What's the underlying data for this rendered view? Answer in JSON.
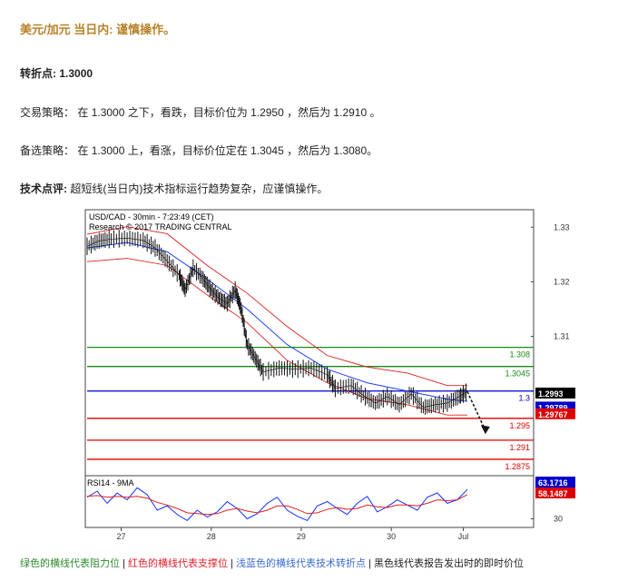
{
  "header": {
    "title": "美元/加元 当日内: 谨慎操作。"
  },
  "pivot": {
    "label": "转折点:",
    "value": "1.3000"
  },
  "strategy": {
    "label": "交易策略：",
    "text": "在 1.3000 之下，看跌，目标价位为 1.2950 ，然后为 1.2910 。"
  },
  "alternative": {
    "label": "备选策略：",
    "text": "在 1.3000 上，看涨，目标价位定在 1.3045 ，然后为 1.3080。"
  },
  "comment": {
    "label": "技术点评:",
    "text": "超短线(当日内)技术指标运行趋势复杂，应谨慎操作。"
  },
  "chart_data": {
    "type": "line",
    "header_line1": "USD/CAD - 30min - 7:23:49 (CET)",
    "header_line2": "Research © 2017 TRADING CENTRAL",
    "y_ticks": [
      "1.33",
      "1.32",
      "1.31",
      "1.3"
    ],
    "x_ticks": [
      "27",
      "28",
      "29",
      "30",
      "Jul"
    ],
    "price_axis": {
      "min": 1.2845,
      "max": 1.3332
    },
    "levels": [
      {
        "label": "1.308",
        "value": 1.308,
        "kind": "resistance",
        "color": "#1a8a1a"
      },
      {
        "label": "1.3045",
        "value": 1.3045,
        "kind": "resistance",
        "color": "#1a8a1a"
      },
      {
        "label": "1.3",
        "value": 1.3,
        "kind": "pivot",
        "color": "#0000cc"
      },
      {
        "label": "1.295",
        "value": 1.295,
        "kind": "support",
        "color": "#dd0000"
      },
      {
        "label": "1.291",
        "value": 1.291,
        "kind": "support",
        "color": "#dd0000"
      },
      {
        "label": "1.2875",
        "value": 1.2875,
        "kind": "support",
        "color": "#dd0000"
      }
    ],
    "price_tags": [
      {
        "label": "1.2993",
        "value": 1.2993,
        "bg": "#000000"
      },
      {
        "label": "1.29789",
        "value": 1.29789,
        "bg": "#0000cc"
      },
      {
        "label": "1.29767",
        "value": 1.29767,
        "bg": "#dd0000"
      }
    ],
    "price_series": [
      {
        "x": 0.0,
        "y": 1.3265
      },
      {
        "x": 0.03,
        "y": 1.3275
      },
      {
        "x": 0.06,
        "y": 1.3278
      },
      {
        "x": 0.1,
        "y": 1.328
      },
      {
        "x": 0.14,
        "y": 1.3276
      },
      {
        "x": 0.17,
        "y": 1.3262
      },
      {
        "x": 0.2,
        "y": 1.3238
      },
      {
        "x": 0.23,
        "y": 1.3212
      },
      {
        "x": 0.245,
        "y": 1.3185
      },
      {
        "x": 0.265,
        "y": 1.3225
      },
      {
        "x": 0.29,
        "y": 1.3205
      },
      {
        "x": 0.31,
        "y": 1.3185
      },
      {
        "x": 0.33,
        "y": 1.317
      },
      {
        "x": 0.35,
        "y": 1.316
      },
      {
        "x": 0.37,
        "y": 1.3185
      },
      {
        "x": 0.385,
        "y": 1.315
      },
      {
        "x": 0.4,
        "y": 1.3085
      },
      {
        "x": 0.42,
        "y": 1.306
      },
      {
        "x": 0.44,
        "y": 1.3035
      },
      {
        "x": 0.48,
        "y": 1.3042
      },
      {
        "x": 0.52,
        "y": 1.304
      },
      {
        "x": 0.56,
        "y": 1.3042
      },
      {
        "x": 0.6,
        "y": 1.303
      },
      {
        "x": 0.62,
        "y": 1.3005
      },
      {
        "x": 0.66,
        "y": 1.301
      },
      {
        "x": 0.69,
        "y": 1.2992
      },
      {
        "x": 0.72,
        "y": 1.2978
      },
      {
        "x": 0.75,
        "y": 1.299
      },
      {
        "x": 0.78,
        "y": 1.2975
      },
      {
        "x": 0.81,
        "y": 1.2995
      },
      {
        "x": 0.84,
        "y": 1.297
      },
      {
        "x": 0.87,
        "y": 1.2975
      },
      {
        "x": 0.9,
        "y": 1.2978
      },
      {
        "x": 0.93,
        "y": 1.299
      },
      {
        "x": 0.95,
        "y": 1.2999
      }
    ],
    "ma_series": [
      {
        "x": 0.0,
        "y": 1.3262
      },
      {
        "x": 0.1,
        "y": 1.3272
      },
      {
        "x": 0.2,
        "y": 1.3255
      },
      {
        "x": 0.3,
        "y": 1.3205
      },
      {
        "x": 0.4,
        "y": 1.315
      },
      {
        "x": 0.5,
        "y": 1.3085
      },
      {
        "x": 0.6,
        "y": 1.304
      },
      {
        "x": 0.7,
        "y": 1.3015
      },
      {
        "x": 0.8,
        "y": 1.3
      },
      {
        "x": 0.9,
        "y": 1.2985
      },
      {
        "x": 0.95,
        "y": 1.2981
      }
    ],
    "arrow": {
      "from": {
        "x": 0.95,
        "y": 1.2999
      },
      "to": {
        "x": 0.995,
        "y": 1.2928
      }
    },
    "rsi": {
      "label": "RSI14 - 9MA",
      "tick": "30",
      "tags": [
        {
          "label": "63.1716",
          "value": 63.17,
          "bg": "#0000cc"
        },
        {
          "label": "58.1487",
          "value": 58.15,
          "bg": "#dd0000"
        }
      ],
      "rsi_series": [
        55,
        62,
        48,
        60,
        52,
        66,
        58,
        40,
        45,
        35,
        28,
        40,
        32,
        38,
        50,
        42,
        30,
        36,
        48,
        55,
        40,
        33,
        28,
        45,
        50,
        42,
        35,
        48,
        56,
        38,
        44,
        52,
        46,
        40,
        55,
        60,
        48,
        52,
        64
      ],
      "ma_series": [
        56,
        57,
        55,
        56,
        55,
        56,
        54,
        49,
        46,
        42,
        37,
        36,
        35,
        36,
        40,
        42,
        39,
        37,
        40,
        45,
        45,
        41,
        36,
        37,
        41,
        43,
        41,
        42,
        46,
        44,
        43,
        46,
        46,
        45,
        48,
        52,
        51,
        52,
        58
      ]
    }
  },
  "legend": {
    "green": "绿色的横线代表阻力位",
    "sep": "|",
    "red": "红色的横线代表支撑位",
    "blue": "浅蓝色的横线代表技术转折点",
    "black": "黑色线代表报告发出时的即时价位"
  }
}
